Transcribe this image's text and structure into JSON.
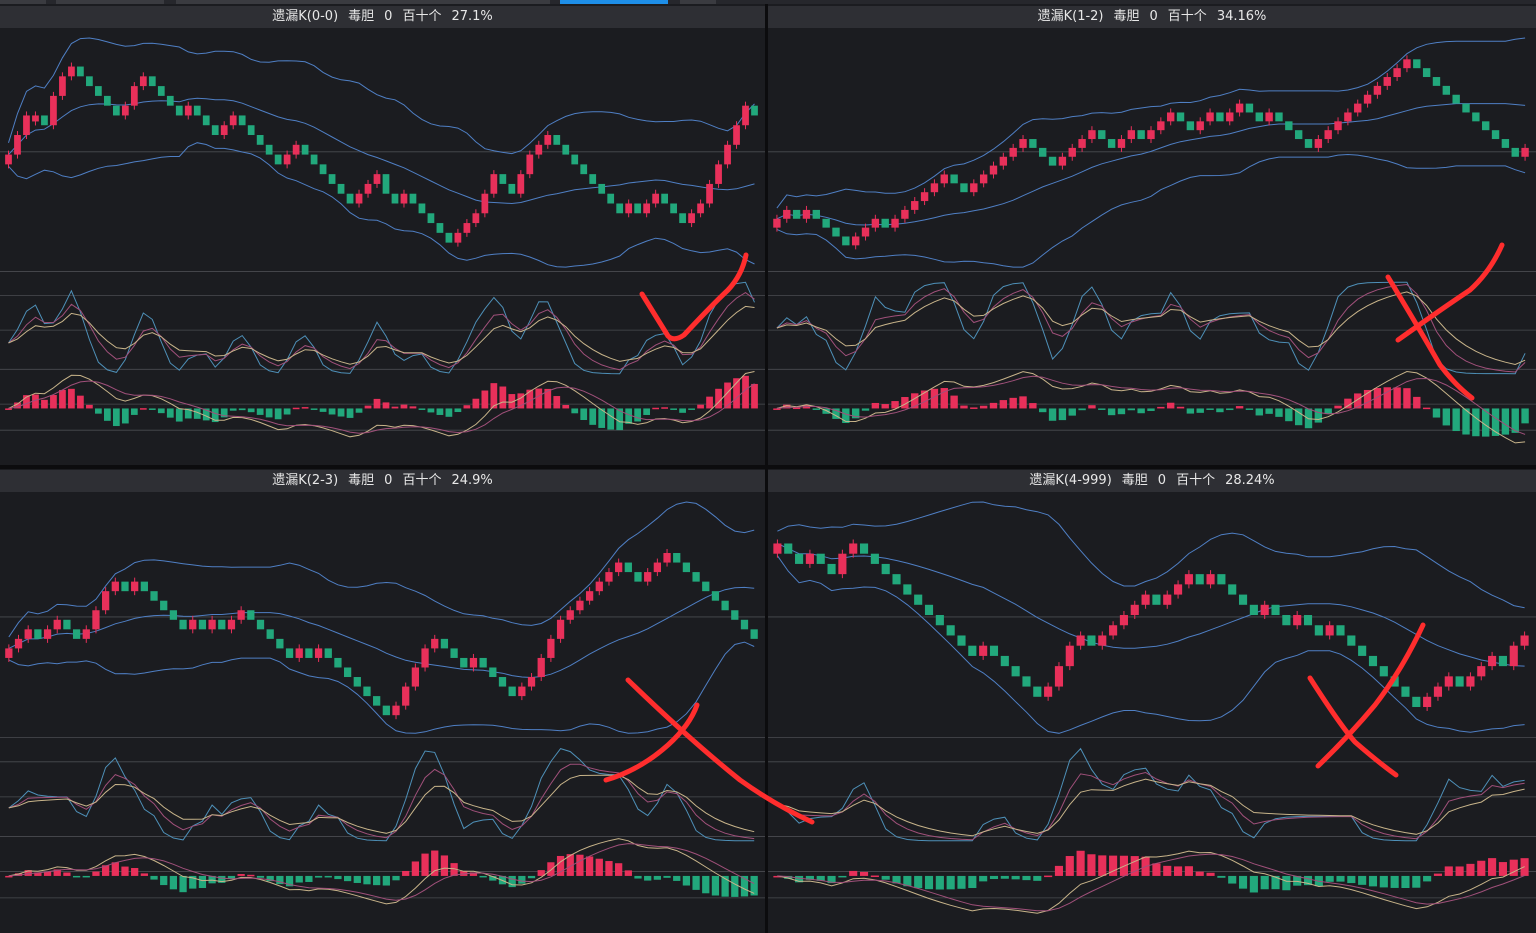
{
  "colors": {
    "background": "#1b1c20",
    "title_bar": "#2e2f34",
    "up": "#e8305a",
    "down": "#22a87c",
    "boll_band": "#4f7fc4",
    "osc_fast": "#4e90b8",
    "osc_mid": "#a0507a",
    "osc_slow": "#c8b48a",
    "gridline": "#4a4b50",
    "annotation": "#ff2d2d"
  },
  "panels": [
    {
      "name": "遗漏K(0-0)",
      "field": "毒胆",
      "value": "0",
      "position": "百十个",
      "percent": "27.1%"
    },
    {
      "name": "遗漏K(1-2)",
      "field": "毒胆",
      "value": "0",
      "position": "百十个",
      "percent": "34.16%"
    },
    {
      "name": "遗漏K(2-3)",
      "field": "毒胆",
      "value": "0",
      "position": "百十个",
      "percent": "24.9%"
    },
    {
      "name": "遗漏K(4-999)",
      "field": "毒胆",
      "value": "0",
      "position": "百十个",
      "percent": "28.24%"
    }
  ],
  "chart_data": [
    {
      "type": "candlestick",
      "title": "遗漏K(0-0) 毒胆 0 百十个 27.1%",
      "indicators": [
        "bollinger",
        "oscillator",
        "macd"
      ],
      "close": [
        3,
        5,
        7,
        7,
        6,
        9,
        11,
        12,
        11,
        10,
        9,
        8,
        7,
        8,
        10,
        11,
        10,
        9,
        8,
        7,
        8,
        7,
        6,
        5,
        6,
        7,
        6,
        5,
        4,
        3,
        2,
        3,
        4,
        3,
        2,
        1,
        0,
        -1,
        -2,
        -1,
        0,
        1,
        -1,
        -2,
        -1,
        -2,
        -3,
        -4,
        -5,
        -6,
        -5,
        -4,
        -3,
        -1,
        1,
        0,
        -1,
        1,
        3,
        4,
        5,
        4,
        3,
        2,
        1,
        0,
        -1,
        -2,
        -3,
        -2,
        -3,
        -2,
        -1,
        -2,
        -3,
        -4,
        -3,
        -2,
        0,
        2,
        4,
        6,
        8,
        7
      ],
      "annotation": "check"
    },
    {
      "type": "candlestick",
      "title": "遗漏K(1-2) 毒胆 0 百十个 34.16%",
      "indicators": [
        "bollinger",
        "oscillator",
        "macd"
      ],
      "close": [
        0,
        1,
        0,
        1,
        0,
        -1,
        -2,
        -3,
        -2,
        -1,
        0,
        -1,
        0,
        1,
        2,
        3,
        4,
        5,
        4,
        3,
        4,
        5,
        6,
        7,
        8,
        9,
        8,
        7,
        6,
        7,
        8,
        9,
        10,
        9,
        8,
        9,
        10,
        9,
        10,
        11,
        12,
        11,
        10,
        11,
        12,
        11,
        12,
        13,
        12,
        11,
        12,
        11,
        10,
        9,
        8,
        9,
        10,
        11,
        12,
        13,
        14,
        15,
        16,
        17,
        18,
        17,
        16,
        15,
        14,
        13,
        12,
        11,
        10,
        9,
        8,
        7,
        8
      ],
      "annotation": "cross"
    },
    {
      "type": "candlestick",
      "title": "遗漏K(2-3) 毒胆 0 百十个 24.9%",
      "indicators": [
        "bollinger",
        "oscillator",
        "macd"
      ],
      "close": [
        2,
        3,
        4,
        3,
        4,
        5,
        4,
        3,
        4,
        6,
        8,
        9,
        8,
        9,
        8,
        7,
        6,
        5,
        4,
        5,
        4,
        5,
        4,
        5,
        6,
        5,
        4,
        3,
        2,
        1,
        2,
        1,
        2,
        1,
        0,
        -1,
        -2,
        -3,
        -4,
        -5,
        -4,
        -2,
        0,
        2,
        3,
        2,
        1,
        0,
        1,
        0,
        -1,
        -2,
        -3,
        -2,
        -1,
        1,
        3,
        5,
        6,
        7,
        8,
        9,
        10,
        11,
        10,
        9,
        10,
        11,
        12,
        11,
        10,
        9,
        8,
        7,
        6,
        5,
        4,
        3
      ],
      "annotation": "cross"
    },
    {
      "type": "candlestick",
      "title": "遗漏K(4-999) 毒胆 0 百十个 28.24%",
      "indicators": [
        "bollinger",
        "oscillator",
        "macd"
      ],
      "close": [
        12,
        11,
        10,
        11,
        10,
        9,
        11,
        12,
        11,
        10,
        9,
        8,
        7,
        6,
        5,
        4,
        3,
        2,
        1,
        2,
        1,
        0,
        -1,
        -2,
        -3,
        -2,
        0,
        2,
        3,
        2,
        3,
        4,
        5,
        6,
        7,
        6,
        7,
        8,
        9,
        8,
        9,
        8,
        7,
        6,
        5,
        6,
        5,
        4,
        5,
        4,
        3,
        4,
        3,
        2,
        1,
        0,
        -1,
        -2,
        -3,
        -4,
        -3,
        -2,
        -1,
        -2,
        -1,
        0,
        1,
        0,
        2,
        3
      ],
      "annotation": "cross"
    }
  ]
}
